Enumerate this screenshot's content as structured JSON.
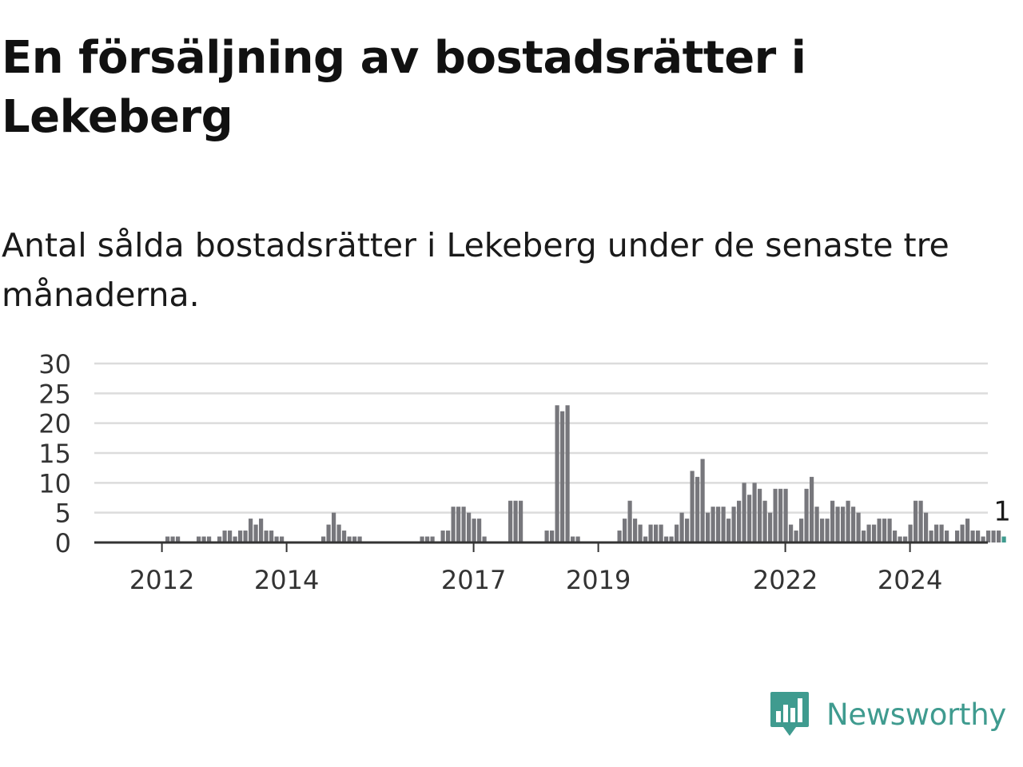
{
  "title": "En försäljning av bostadsrätter i Lekeberg",
  "subtitle": "Antal sålda bostadsrätter i Lekeberg under de senaste tre månaderna.",
  "logo": {
    "text": "Newsworthy",
    "icon": "newsworthy-bar-icon"
  },
  "colors": {
    "bar": "#77777c",
    "highlight": "#3f9b8f",
    "grid": "#dcdcdc",
    "axis": "#333333",
    "text": "#1a1a1a",
    "brand": "#3f9b8f"
  },
  "chart_data": {
    "type": "bar",
    "title": "",
    "xlabel": "",
    "ylabel": "",
    "ylim": [
      0,
      30
    ],
    "yticks": [
      "0",
      "5",
      "10",
      "15",
      "20",
      "25",
      "30"
    ],
    "grid": true,
    "x_start": "2011-06",
    "x_ticks": [
      {
        "label": "2012",
        "date": "2012-01"
      },
      {
        "label": "2014",
        "date": "2014-01"
      },
      {
        "label": "2017",
        "date": "2017-01"
      },
      {
        "label": "2019",
        "date": "2019-01"
      },
      {
        "label": "2022",
        "date": "2022-01"
      },
      {
        "label": "2024",
        "date": "2024-01"
      }
    ],
    "values": [
      0,
      0,
      0,
      0,
      0,
      0,
      0,
      0,
      1,
      1,
      1,
      0,
      0,
      0,
      1,
      1,
      1,
      0,
      1,
      2,
      2,
      1,
      2,
      2,
      4,
      3,
      4,
      2,
      2,
      1,
      1,
      0,
      0,
      0,
      0,
      0,
      0,
      0,
      1,
      3,
      5,
      3,
      2,
      1,
      1,
      1,
      0,
      0,
      0,
      0,
      0,
      0,
      0,
      0,
      0,
      0,
      0,
      1,
      1,
      1,
      0,
      2,
      2,
      6,
      6,
      6,
      5,
      4,
      4,
      1,
      0,
      0,
      0,
      0,
      7,
      7,
      7,
      0,
      0,
      0,
      0,
      2,
      2,
      23,
      22,
      23,
      1,
      1,
      0,
      0,
      0,
      0,
      0,
      0,
      0,
      2,
      4,
      7,
      4,
      3,
      1,
      3,
      3,
      3,
      1,
      1,
      3,
      5,
      4,
      12,
      11,
      14,
      5,
      6,
      6,
      6,
      4,
      6,
      7,
      10,
      8,
      10,
      9,
      7,
      5,
      9,
      9,
      9,
      3,
      2,
      4,
      9,
      11,
      6,
      4,
      4,
      7,
      6,
      6,
      7,
      6,
      5,
      2,
      3,
      3,
      4,
      4,
      4,
      2,
      1,
      1,
      3,
      7,
      7,
      5,
      2,
      3,
      3,
      2,
      0,
      2,
      3,
      4,
      2,
      2,
      1,
      2,
      2,
      2,
      1
    ],
    "highlight_last": true,
    "annotation": "1"
  }
}
